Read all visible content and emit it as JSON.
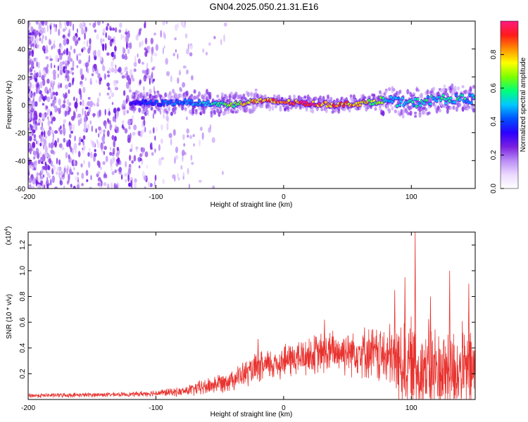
{
  "title": "GN04.2025.050.21.31.E16",
  "colors": {
    "line": "#e8322e",
    "colormap": [
      "#ffffff",
      "#ecd9ff",
      "#b98cf5",
      "#7a1fe0",
      "#2a00ff",
      "#0050ff",
      "#00c8ff",
      "#00ff7a",
      "#7cff00",
      "#ffff00",
      "#ff9000",
      "#ff1a1a",
      "#ff1a80"
    ]
  },
  "chart_data": [
    {
      "type": "heatmap",
      "xlabel": "Height of straight line (km)",
      "ylabel": "Frequency (Hz)",
      "xlim": [
        -200,
        150
      ],
      "ylim": [
        -60,
        60
      ],
      "xticks": [
        -200,
        -100,
        0,
        100
      ],
      "yticks": [
        -60,
        -40,
        -20,
        0,
        20,
        40,
        60
      ],
      "colorbar": {
        "label": "Normalized spectral amplitude",
        "range": [
          0,
          1
        ],
        "ticks": [
          "0.0",
          "0.2",
          "0.4",
          "0.6",
          "0.8"
        ]
      },
      "ridge": {
        "x": [
          -120,
          -100,
          -80,
          -60,
          -40,
          -20,
          0,
          20,
          40,
          60,
          80,
          100,
          120,
          150
        ],
        "freq": [
          2,
          1,
          2,
          1,
          0,
          3,
          2,
          1,
          0,
          1,
          3,
          1,
          4,
          4
        ],
        "amplitude": [
          0.3,
          0.4,
          0.45,
          0.5,
          0.65,
          0.8,
          0.85,
          0.9,
          0.85,
          0.8,
          0.55,
          0.5,
          0.55,
          0.5
        ]
      },
      "noise_region_x": [
        -200,
        -45
      ]
    },
    {
      "type": "line",
      "xlabel": "Height of straight line (km)",
      "ylabel": "SNR (10 * v/v)",
      "multiplier": "(x10",
      "multiplier_exp": "4",
      "multiplier_close": ")",
      "xlim": [
        -200,
        150
      ],
      "ylim": [
        0,
        1.3
      ],
      "xticks": [
        -200,
        -100,
        0,
        100
      ],
      "ytick_labels": [
        "0.2",
        "0.4",
        "0.6",
        "0.8",
        "1.0",
        "1.2"
      ],
      "yticks": [
        0.2,
        0.4,
        0.6,
        0.8,
        1.0,
        1.2
      ],
      "envelope": {
        "x": [
          -200,
          -120,
          -80,
          -60,
          -40,
          -20,
          0,
          20,
          40,
          60,
          80,
          100,
          120,
          150
        ],
        "base": [
          0.03,
          0.04,
          0.06,
          0.1,
          0.16,
          0.24,
          0.3,
          0.34,
          0.37,
          0.38,
          0.33,
          0.25,
          0.22,
          0.22
        ],
        "amp": [
          0.02,
          0.02,
          0.04,
          0.08,
          0.1,
          0.14,
          0.16,
          0.18,
          0.2,
          0.22,
          0.28,
          0.45,
          0.42,
          0.4
        ]
      },
      "peaks": [
        {
          "x": 103,
          "y": 1.3
        },
        {
          "x": 130,
          "y": 1.0
        },
        {
          "x": 95,
          "y": 0.95
        },
        {
          "x": 145,
          "y": 0.9
        },
        {
          "x": 87,
          "y": 0.85
        },
        {
          "x": 115,
          "y": 0.8
        },
        {
          "x": 32,
          "y": 0.62
        },
        {
          "x": -20,
          "y": 0.47
        }
      ]
    }
  ]
}
